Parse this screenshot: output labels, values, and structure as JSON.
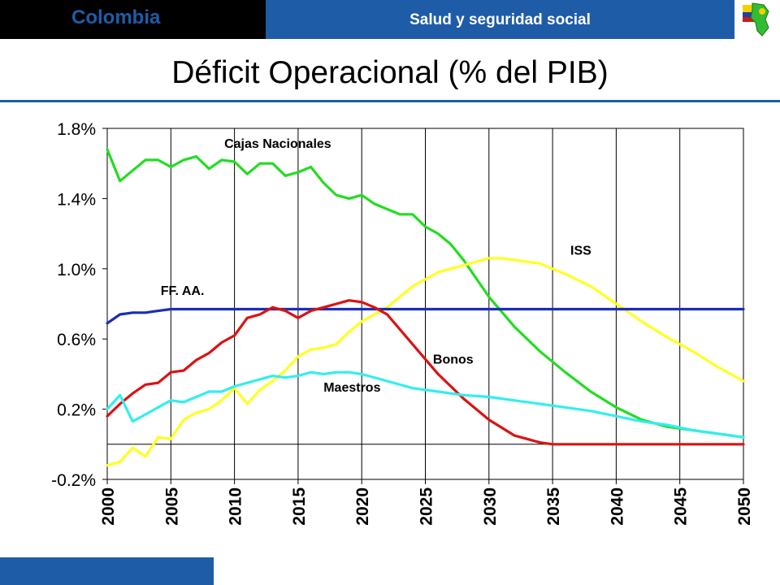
{
  "header": {
    "country": "Colombia",
    "section": "Salud y seguridad social"
  },
  "colors": {
    "brand_blue": "#1f5ca8",
    "header_black": "#000000"
  },
  "chart_data": {
    "type": "line",
    "title": "Déficit Operacional (% del PIB)",
    "xlabel": "",
    "ylabel": "",
    "xlim": [
      2000,
      2050
    ],
    "ylim": [
      -0.2,
      1.8
    ],
    "yticks": [
      "-0.2%",
      "0.2%",
      "0.6%",
      "1.0%",
      "1.4%",
      "1.8%"
    ],
    "xticks": [
      "2000",
      "2005",
      "2010",
      "2015",
      "2020",
      "2025",
      "2030",
      "2035",
      "2040",
      "2045",
      "2050"
    ],
    "grid": "vertical",
    "series": [
      {
        "name": "Cajas Nacionales",
        "color": "#22dd22",
        "x": [
          2000,
          2001,
          2002,
          2003,
          2004,
          2005,
          2006,
          2007,
          2008,
          2009,
          2010,
          2011,
          2012,
          2013,
          2014,
          2015,
          2016,
          2017,
          2018,
          2019,
          2020,
          2021,
          2022,
          2023,
          2024,
          2025,
          2026,
          2027,
          2028,
          2030,
          2032,
          2034,
          2036,
          2038,
          2040,
          2042,
          2044,
          2046,
          2048,
          2050
        ],
        "y": [
          1.68,
          1.5,
          1.56,
          1.62,
          1.62,
          1.58,
          1.62,
          1.64,
          1.57,
          1.62,
          1.61,
          1.54,
          1.6,
          1.6,
          1.53,
          1.55,
          1.58,
          1.49,
          1.42,
          1.4,
          1.42,
          1.37,
          1.34,
          1.31,
          1.31,
          1.24,
          1.2,
          1.14,
          1.05,
          0.84,
          0.67,
          0.53,
          0.41,
          0.3,
          0.21,
          0.14,
          0.1,
          0.08,
          0.06,
          0.04
        ]
      },
      {
        "name": "ISS",
        "color": "#ffff22",
        "x": [
          2000,
          2001,
          2002,
          2003,
          2004,
          2005,
          2006,
          2007,
          2008,
          2009,
          2010,
          2011,
          2012,
          2013,
          2014,
          2015,
          2016,
          2017,
          2018,
          2019,
          2020,
          2021,
          2022,
          2024,
          2026,
          2028,
          2030,
          2031,
          2032,
          2034,
          2036,
          2038,
          2040,
          2042,
          2044,
          2046,
          2048,
          2050
        ],
        "y": [
          -0.12,
          -0.1,
          -0.02,
          -0.07,
          0.04,
          0.03,
          0.14,
          0.18,
          0.2,
          0.25,
          0.32,
          0.23,
          0.31,
          0.36,
          0.42,
          0.5,
          0.54,
          0.55,
          0.57,
          0.64,
          0.7,
          0.74,
          0.78,
          0.9,
          0.98,
          1.02,
          1.06,
          1.06,
          1.05,
          1.03,
          0.97,
          0.9,
          0.8,
          0.7,
          0.61,
          0.53,
          0.44,
          0.36
        ]
      },
      {
        "name": "FF. AA.",
        "color": "#1a2eb8",
        "x": [
          2000,
          2001,
          2002,
          2003,
          2004,
          2005,
          2010,
          2020,
          2030,
          2040,
          2050
        ],
        "y": [
          0.69,
          0.74,
          0.75,
          0.75,
          0.76,
          0.77,
          0.77,
          0.77,
          0.77,
          0.77,
          0.77
        ]
      },
      {
        "name": "Bonos",
        "color": "#dd1111",
        "x": [
          2000,
          2001,
          2002,
          2003,
          2004,
          2005,
          2006,
          2007,
          2008,
          2009,
          2010,
          2011,
          2012,
          2013,
          2014,
          2015,
          2016,
          2017,
          2018,
          2019,
          2020,
          2021,
          2022,
          2024,
          2026,
          2028,
          2030,
          2032,
          2034,
          2035,
          2040,
          2045,
          2050
        ],
        "y": [
          0.16,
          0.23,
          0.29,
          0.34,
          0.35,
          0.41,
          0.42,
          0.48,
          0.52,
          0.58,
          0.62,
          0.72,
          0.74,
          0.78,
          0.76,
          0.72,
          0.76,
          0.78,
          0.8,
          0.82,
          0.81,
          0.78,
          0.74,
          0.57,
          0.4,
          0.26,
          0.14,
          0.05,
          0.01,
          0.0,
          0.0,
          0.0,
          0.0
        ]
      },
      {
        "name": "Maestros",
        "color": "#33eeee",
        "x": [
          2000,
          2001,
          2002,
          2003,
          2004,
          2005,
          2006,
          2007,
          2008,
          2009,
          2010,
          2011,
          2012,
          2013,
          2014,
          2015,
          2016,
          2017,
          2018,
          2019,
          2020,
          2022,
          2024,
          2026,
          2028,
          2030,
          2032,
          2034,
          2036,
          2038,
          2040,
          2042,
          2044,
          2046,
          2048,
          2050
        ],
        "y": [
          0.2,
          0.28,
          0.13,
          0.17,
          0.21,
          0.25,
          0.24,
          0.27,
          0.3,
          0.3,
          0.33,
          0.35,
          0.37,
          0.39,
          0.38,
          0.39,
          0.41,
          0.4,
          0.41,
          0.41,
          0.4,
          0.36,
          0.32,
          0.3,
          0.28,
          0.27,
          0.25,
          0.23,
          0.21,
          0.19,
          0.16,
          0.13,
          0.11,
          0.08,
          0.06,
          0.04
        ]
      }
    ],
    "annotations": [
      {
        "text": "Cajas Nacionales",
        "x": 2009.2,
        "y": 1.69
      },
      {
        "text": "ISS",
        "x": 2036.4,
        "y": 1.08
      },
      {
        "text": "FF. AA.",
        "x": 2004.2,
        "y": 0.85
      },
      {
        "text": "Bonos",
        "x": 2025.6,
        "y": 0.46
      },
      {
        "text": "Maestros",
        "x": 2017.0,
        "y": 0.3
      }
    ]
  }
}
